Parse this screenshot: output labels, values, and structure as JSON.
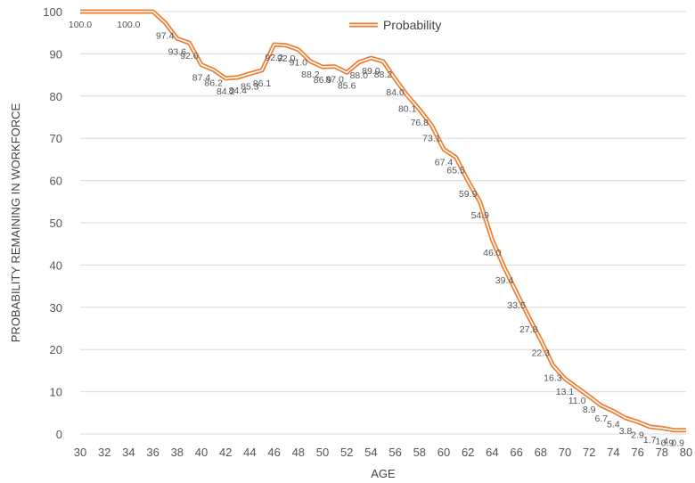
{
  "chart_data": {
    "type": "line",
    "title": "",
    "xlabel": "AGE",
    "ylabel": "PROBABILITY REMAINING IN WORKFORCE",
    "xlim": [
      30,
      80
    ],
    "ylim": [
      0,
      100
    ],
    "x_ticks": [
      30,
      32,
      34,
      36,
      38,
      40,
      42,
      44,
      46,
      48,
      50,
      52,
      54,
      56,
      58,
      60,
      62,
      64,
      66,
      68,
      70,
      72,
      74,
      76,
      78,
      80
    ],
    "y_ticks": [
      0,
      10,
      20,
      30,
      40,
      50,
      60,
      70,
      80,
      90,
      100
    ],
    "grid": "horizontal",
    "legend_position": "top-center",
    "colors": {
      "line_outer": "#ed7d31",
      "line_inner": "#ffffff",
      "grid": "#d9d9d9"
    },
    "series": [
      {
        "name": "Probability",
        "x": [
          30,
          31,
          32,
          33,
          34,
          35,
          36,
          37,
          38,
          39,
          40,
          41,
          42,
          43,
          44,
          45,
          46,
          47,
          48,
          49,
          50,
          51,
          52,
          53,
          54,
          55,
          56,
          57,
          58,
          59,
          60,
          61,
          62,
          63,
          64,
          65,
          66,
          67,
          68,
          69,
          70,
          71,
          72,
          73,
          74,
          75,
          76,
          77,
          78,
          79,
          80
        ],
        "values": [
          100.0,
          100.0,
          100.0,
          100.0,
          100.0,
          100.0,
          100.0,
          97.4,
          93.6,
          92.6,
          87.4,
          86.2,
          84.2,
          84.4,
          85.3,
          86.1,
          92.2,
          92.0,
          91.0,
          88.2,
          86.9,
          87.0,
          85.6,
          88.0,
          89.0,
          88.2,
          84.0,
          80.1,
          76.8,
          73.1,
          67.4,
          65.5,
          59.9,
          54.9,
          46.0,
          39.4,
          33.5,
          27.8,
          22.3,
          16.3,
          13.1,
          11.0,
          8.9,
          6.7,
          5.4,
          3.8,
          2.9,
          1.7,
          1.4,
          0.9,
          0.9
        ],
        "labels": [
          "100.0",
          "",
          "",
          "",
          "100.0",
          "",
          "",
          "97.4",
          "93.6",
          "92.6",
          "87.4",
          "86.2",
          "84.2",
          "84.4",
          "85.3",
          "86.1",
          "92.2",
          "92.0",
          "91.0",
          "88.2",
          "86.9",
          "87.0",
          "85.6",
          "88.0",
          "89.0",
          "88.2",
          "84.0",
          "80.1",
          "76.8",
          "73.1",
          "67.4",
          "65.5",
          "59.9",
          "54.9",
          "46.0",
          "39.4",
          "33.5",
          "27.8",
          "22.3",
          "16.3",
          "13.1",
          "11.0",
          "8.9",
          "6.7",
          "5.4",
          "3.8",
          "2.9",
          "1.7",
          "1.4",
          "0.9",
          "0.9"
        ]
      }
    ]
  }
}
